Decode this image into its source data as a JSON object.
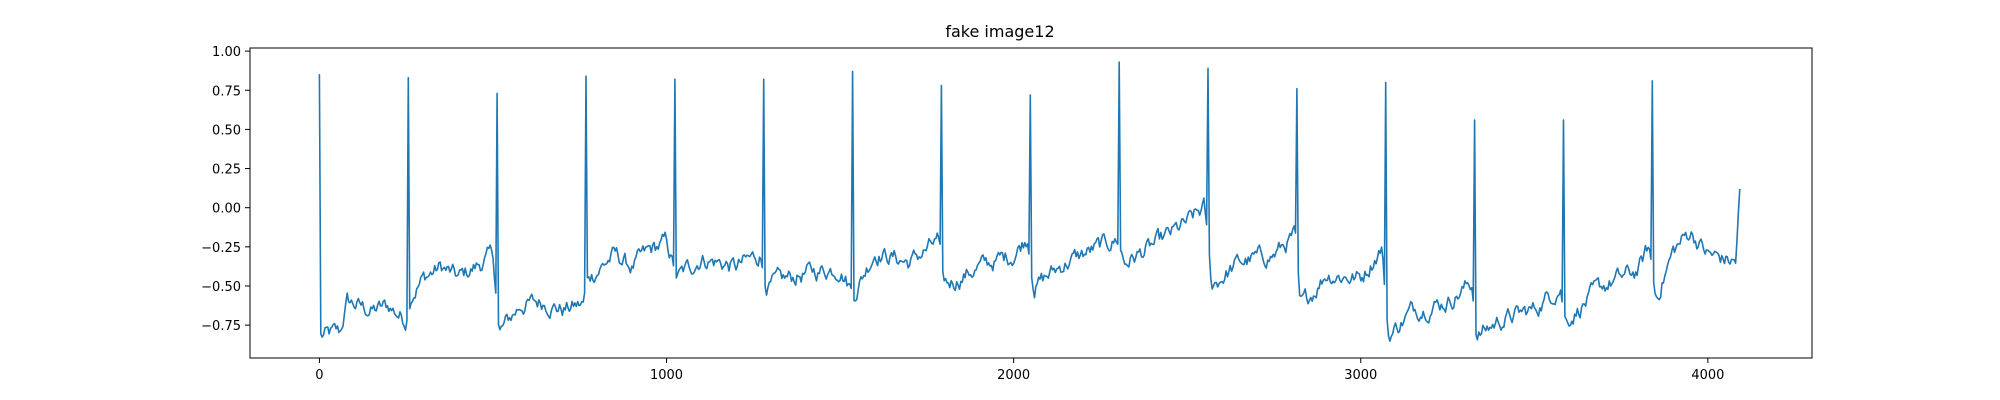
{
  "chart_data": {
    "type": "line",
    "title": "fake image12",
    "xlabel": "",
    "ylabel": "",
    "xlim": [
      -200,
      4300
    ],
    "ylim": [
      -0.96,
      1.02
    ],
    "xticks": [
      0,
      1000,
      2000,
      3000,
      4000
    ],
    "xtick_labels": [
      "0",
      "1000",
      "2000",
      "3000",
      "4000"
    ],
    "yticks": [
      1.0,
      0.75,
      0.5,
      0.25,
      0.0,
      -0.25,
      -0.5,
      -0.75
    ],
    "ytick_labels": [
      "1.00",
      "0.75",
      "0.50",
      "0.25",
      "0.00",
      "−0.25",
      "−0.50",
      "−0.75"
    ],
    "grid": false,
    "legend": "none",
    "series": [
      {
        "color": "#1f77b4",
        "peaks": [
          {
            "x": 0,
            "y": 0.85
          },
          {
            "x": 256,
            "y": 0.83
          },
          {
            "x": 512,
            "y": 0.73
          },
          {
            "x": 768,
            "y": 0.84
          },
          {
            "x": 1024,
            "y": 0.82
          },
          {
            "x": 1280,
            "y": 0.82
          },
          {
            "x": 1536,
            "y": 0.87
          },
          {
            "x": 1792,
            "y": 0.78
          },
          {
            "x": 2048,
            "y": 0.72
          },
          {
            "x": 2304,
            "y": 0.93
          },
          {
            "x": 2560,
            "y": 0.89
          },
          {
            "x": 2816,
            "y": 0.76
          },
          {
            "x": 3072,
            "y": 0.8
          },
          {
            "x": 3328,
            "y": 0.56
          },
          {
            "x": 3584,
            "y": 0.56
          },
          {
            "x": 3840,
            "y": 0.81
          }
        ],
        "baseline": [
          {
            "x": 5,
            "y": -0.82
          },
          {
            "x": 60,
            "y": -0.8
          },
          {
            "x": 80,
            "y": -0.6
          },
          {
            "x": 150,
            "y": -0.66
          },
          {
            "x": 200,
            "y": -0.63
          },
          {
            "x": 250,
            "y": -0.72
          },
          {
            "x": 262,
            "y": -0.55
          },
          {
            "x": 300,
            "y": -0.45
          },
          {
            "x": 350,
            "y": -0.38
          },
          {
            "x": 400,
            "y": -0.45
          },
          {
            "x": 450,
            "y": -0.38
          },
          {
            "x": 500,
            "y": -0.3
          },
          {
            "x": 518,
            "y": -0.8
          },
          {
            "x": 580,
            "y": -0.62
          },
          {
            "x": 650,
            "y": -0.6
          },
          {
            "x": 700,
            "y": -0.65
          },
          {
            "x": 760,
            "y": -0.62
          },
          {
            "x": 775,
            "y": -0.45
          },
          {
            "x": 850,
            "y": -0.3
          },
          {
            "x": 900,
            "y": -0.38
          },
          {
            "x": 950,
            "y": -0.28
          },
          {
            "x": 1000,
            "y": -0.22
          },
          {
            "x": 1030,
            "y": -0.45
          },
          {
            "x": 1100,
            "y": -0.32
          },
          {
            "x": 1200,
            "y": -0.38
          },
          {
            "x": 1270,
            "y": -0.3
          },
          {
            "x": 1290,
            "y": -0.5
          },
          {
            "x": 1400,
            "y": -0.42
          },
          {
            "x": 1500,
            "y": -0.38
          },
          {
            "x": 1540,
            "y": -0.55
          },
          {
            "x": 1600,
            "y": -0.28
          },
          {
            "x": 1700,
            "y": -0.35
          },
          {
            "x": 1780,
            "y": -0.22
          },
          {
            "x": 1800,
            "y": -0.5
          },
          {
            "x": 1900,
            "y": -0.38
          },
          {
            "x": 2000,
            "y": -0.3
          },
          {
            "x": 2040,
            "y": -0.18
          },
          {
            "x": 2060,
            "y": -0.5
          },
          {
            "x": 2150,
            "y": -0.35
          },
          {
            "x": 2250,
            "y": -0.25
          },
          {
            "x": 2300,
            "y": -0.2
          },
          {
            "x": 2320,
            "y": -0.35
          },
          {
            "x": 2400,
            "y": -0.25
          },
          {
            "x": 2500,
            "y": -0.1
          },
          {
            "x": 2550,
            "y": 0.0
          },
          {
            "x": 2570,
            "y": -0.5
          },
          {
            "x": 2650,
            "y": -0.35
          },
          {
            "x": 2750,
            "y": -0.3
          },
          {
            "x": 2810,
            "y": -0.18
          },
          {
            "x": 2825,
            "y": -0.65
          },
          {
            "x": 2900,
            "y": -0.42
          },
          {
            "x": 3000,
            "y": -0.45
          },
          {
            "x": 3060,
            "y": -0.25
          },
          {
            "x": 3080,
            "y": -0.82
          },
          {
            "x": 3150,
            "y": -0.65
          },
          {
            "x": 3250,
            "y": -0.6
          },
          {
            "x": 3320,
            "y": -0.48
          },
          {
            "x": 3335,
            "y": -0.82
          },
          {
            "x": 3400,
            "y": -0.72
          },
          {
            "x": 3500,
            "y": -0.65
          },
          {
            "x": 3575,
            "y": -0.5
          },
          {
            "x": 3590,
            "y": -0.72
          },
          {
            "x": 3700,
            "y": -0.5
          },
          {
            "x": 3800,
            "y": -0.4
          },
          {
            "x": 3830,
            "y": -0.25
          },
          {
            "x": 3850,
            "y": -0.58
          },
          {
            "x": 3900,
            "y": -0.28
          },
          {
            "x": 3950,
            "y": -0.15
          },
          {
            "x": 4000,
            "y": -0.3
          },
          {
            "x": 4080,
            "y": -0.35
          },
          {
            "x": 4095,
            "y": 0.2
          }
        ]
      }
    ]
  }
}
